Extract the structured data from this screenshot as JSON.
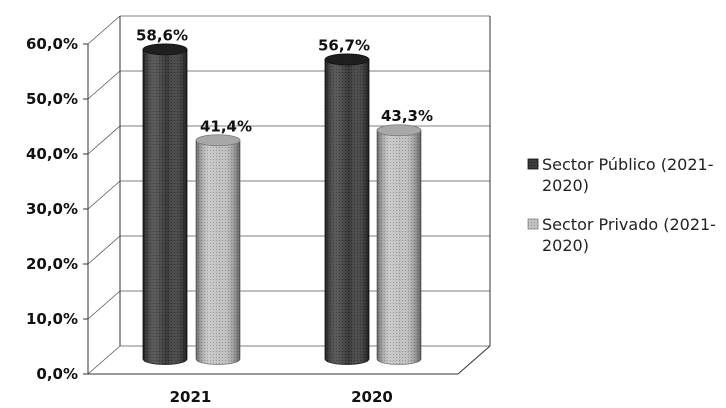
{
  "chart_data": {
    "type": "bar",
    "style": "3d-cylinder",
    "categories": [
      "2021",
      "2020"
    ],
    "series": [
      {
        "name": "Sector Público (2021-2020)",
        "values": [
          58.6,
          56.7
        ],
        "labels": [
          "58,6%",
          "56,7%"
        ],
        "color": "#3a3a3a"
      },
      {
        "name": "Sector Privado (2021-2020)",
        "values": [
          41.4,
          43.3
        ],
        "labels": [
          "41,4%",
          "43,3%"
        ],
        "color": "#b9b9b9"
      }
    ],
    "yticks": [
      "0,0%",
      "10,0%",
      "20,0%",
      "30,0%",
      "40,0%",
      "50,0%",
      "60,0%"
    ],
    "ylim": [
      0,
      60
    ],
    "grid": true,
    "legend_position": "right",
    "legend": [
      {
        "lines": [
          "Sector Público (2021-",
          "2020)"
        ]
      },
      {
        "lines": [
          "Sector Privado (2021-",
          "2020)"
        ]
      }
    ]
  }
}
